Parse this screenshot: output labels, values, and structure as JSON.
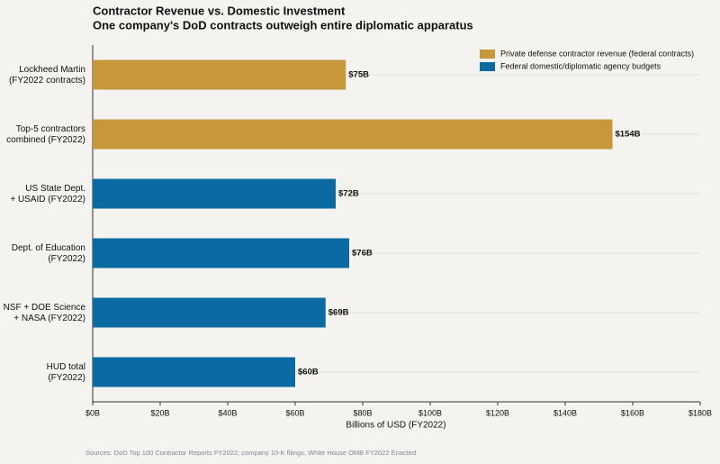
{
  "chart_data": {
    "type": "hbar",
    "title": "Contractor Revenue vs. Domestic Investment",
    "subtitle": "One company's DoD contracts outweigh entire diplomatic apparatus",
    "categories": [
      [
        "Lockheed Martin",
        "(FY2022 contracts)"
      ],
      [
        "Top-5 contractors",
        "combined (FY2022)"
      ],
      [
        "US State Dept.",
        "+ USAID (FY2022)"
      ],
      [
        "Dept. of Education",
        "(FY2022)"
      ],
      [
        "NSF + DOE Science",
        "+ NASA (FY2022)"
      ],
      [
        "HUD total",
        "(FY2022)"
      ]
    ],
    "series": [
      {
        "name": "Private defense contractor revenue (federal contracts)",
        "color": "#c9973b",
        "values": [
          75,
          154,
          null,
          null,
          null,
          null
        ],
        "value_labels": [
          "$75B",
          "$154B",
          null,
          null,
          null,
          null
        ]
      },
      {
        "name": "Federal domestic/diplomatic agency budgets",
        "color": "#0a6aa1",
        "values": [
          null,
          null,
          72,
          76,
          69,
          60
        ],
        "value_labels": [
          null,
          null,
          "$72B",
          "$76B",
          "$69B",
          "$60B"
        ]
      }
    ],
    "xlabel": "Billions of USD (FY2022)",
    "xlim": [
      0,
      180
    ],
    "xticks": [
      {
        "value": 0,
        "label": "$0B"
      },
      {
        "value": 20,
        "label": "$20B"
      },
      {
        "value": 40,
        "label": "$40B"
      },
      {
        "value": 60,
        "label": "$60B"
      },
      {
        "value": 80,
        "label": "$80B"
      },
      {
        "value": 100,
        "label": "$100B"
      },
      {
        "value": 120,
        "label": "$120B"
      },
      {
        "value": 140,
        "label": "$140B"
      },
      {
        "value": 160,
        "label": "$160B"
      },
      {
        "value": 180,
        "label": "$180B"
      }
    ],
    "legend": "upper right",
    "source": "Sources: DoD Top 100 Contractor Reports FY2022; company 10-K filings; White House OMB FY2022 Enacted"
  }
}
